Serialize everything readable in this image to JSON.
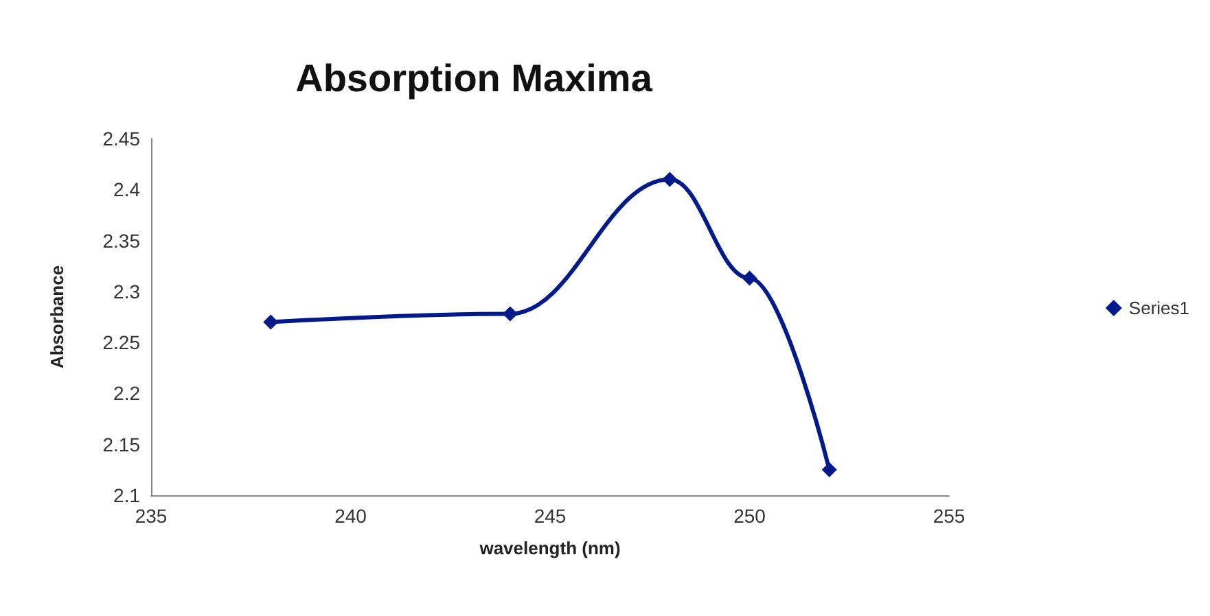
{
  "chart_data": {
    "type": "line",
    "title": "Absorption Maxima",
    "xlabel": "wavelength (nm)",
    "ylabel": "Absorbance",
    "x": [
      238,
      244,
      248,
      250,
      252
    ],
    "series": [
      {
        "name": "Series1",
        "color": "#001a8c",
        "values": [
          2.27,
          2.278,
          2.41,
          2.313,
          2.125
        ]
      }
    ],
    "xlim": [
      235,
      255
    ],
    "xticks": [
      235,
      240,
      245,
      250,
      255
    ],
    "ylim": [
      2.1,
      2.45
    ],
    "yticks": [
      2.1,
      2.15,
      2.2,
      2.25,
      2.3,
      2.35,
      2.4,
      2.45
    ],
    "grid": false,
    "legend": "right",
    "marker": "diamond",
    "line_style": "solid"
  }
}
